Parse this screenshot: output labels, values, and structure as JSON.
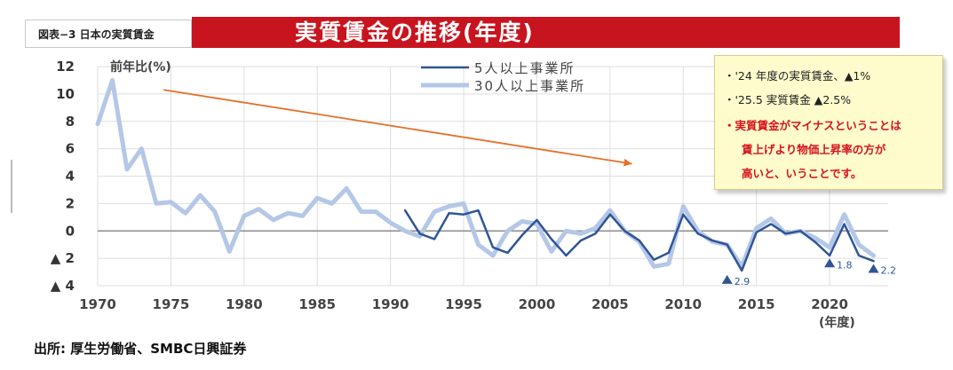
{
  "header": {
    "label": "図表−3 日本の実質賃金",
    "title": "実質賃金の推移(年度)"
  },
  "chart_data": {
    "type": "line",
    "title": "実質賃金の推移(年度)",
    "ylabel": "前年比(%)",
    "xlabel": "(年度)",
    "xlim": [
      1970,
      2024
    ],
    "ylim": [
      -4,
      12
    ],
    "x_ticks": [
      1970,
      1975,
      1980,
      1985,
      1990,
      1995,
      2000,
      2005,
      2010,
      2015,
      2020
    ],
    "y_ticks": [
      {
        "value": 12,
        "label": "12"
      },
      {
        "value": 10,
        "label": "10"
      },
      {
        "value": 8,
        "label": "8"
      },
      {
        "value": 6,
        "label": "6"
      },
      {
        "value": 4,
        "label": "4"
      },
      {
        "value": 2,
        "label": "2"
      },
      {
        "value": 0,
        "label": "0"
      },
      {
        "value": -2,
        "label": "▲ 2"
      },
      {
        "value": -4,
        "label": "▲ 4"
      }
    ],
    "grid": true,
    "legend_position": "top",
    "series": [
      {
        "name": "5人以上事業所",
        "color": "#2f5597",
        "x": [
          1991,
          1992,
          1993,
          1994,
          1995,
          1996,
          1997,
          1998,
          1999,
          2000,
          2001,
          2002,
          2003,
          2004,
          2005,
          2006,
          2007,
          2008,
          2009,
          2010,
          2011,
          2012,
          2013,
          2014,
          2015,
          2016,
          2017,
          2018,
          2019,
          2020,
          2021,
          2022,
          2023
        ],
        "y": [
          1.5,
          -0.2,
          -0.6,
          1.3,
          1.2,
          1.5,
          -1.2,
          -1.6,
          -0.3,
          0.8,
          -0.6,
          -1.8,
          -0.7,
          -0.2,
          1.2,
          0.0,
          -0.7,
          -2.1,
          -1.6,
          1.2,
          -0.2,
          -0.7,
          -1.0,
          -2.9,
          -0.1,
          0.5,
          -0.2,
          0.0,
          -0.8,
          -1.8,
          0.5,
          -1.8,
          -2.2
        ]
      },
      {
        "name": "30人以上事業所",
        "color": "#b4c7e7",
        "x": [
          1970,
          1971,
          1972,
          1973,
          1974,
          1975,
          1976,
          1977,
          1978,
          1979,
          1980,
          1981,
          1982,
          1983,
          1984,
          1985,
          1986,
          1987,
          1988,
          1989,
          1990,
          1991,
          1992,
          1993,
          1994,
          1995,
          1996,
          1997,
          1998,
          1999,
          2000,
          2001,
          2002,
          2003,
          2004,
          2005,
          2006,
          2007,
          2008,
          2009,
          2010,
          2011,
          2012,
          2013,
          2014,
          2015,
          2016,
          2017,
          2018,
          2019,
          2020,
          2021,
          2022,
          2023
        ],
        "y": [
          7.8,
          11.0,
          4.5,
          6.0,
          2.0,
          2.1,
          1.3,
          2.6,
          1.4,
          -1.5,
          1.1,
          1.6,
          0.8,
          1.3,
          1.1,
          2.4,
          2.0,
          3.1,
          1.4,
          1.4,
          0.6,
          0.0,
          -0.4,
          1.4,
          1.8,
          2.0,
          -1.0,
          -1.8,
          0.0,
          0.7,
          0.5,
          -1.5,
          0.0,
          -0.2,
          0.2,
          1.5,
          0.0,
          -0.8,
          -2.6,
          -2.4,
          1.8,
          0.0,
          -0.8,
          -1.0,
          -2.6,
          0.2,
          0.9,
          -0.2,
          0.0,
          -0.5,
          -1.2,
          1.2,
          -1.0,
          -1.8
        ]
      }
    ],
    "annotations": [
      {
        "year": 2013,
        "value": -3.6,
        "label": "2.9"
      },
      {
        "year": 2020,
        "value": -2.4,
        "label": "1.8"
      },
      {
        "year": 2023,
        "value": -2.8,
        "label": "2.2"
      }
    ],
    "trend_arrow": {
      "from": [
        1974.5,
        10.3
      ],
      "to": [
        2006.5,
        4.9
      ],
      "color": "#e2712b"
    },
    "triangle_color": "#2f5597"
  },
  "note": {
    "line1": "・'24 年度の実質賃金、▲1%",
    "line2": "・'25.5 実質賃金 ▲2.5%",
    "line3": "・実質賃金がマイナスということは",
    "line4": "賃上げより物価上昇率の方が",
    "line5": "高いと、いうことです。"
  },
  "source": "出所: 厚生労働省、SMBC日興証券"
}
